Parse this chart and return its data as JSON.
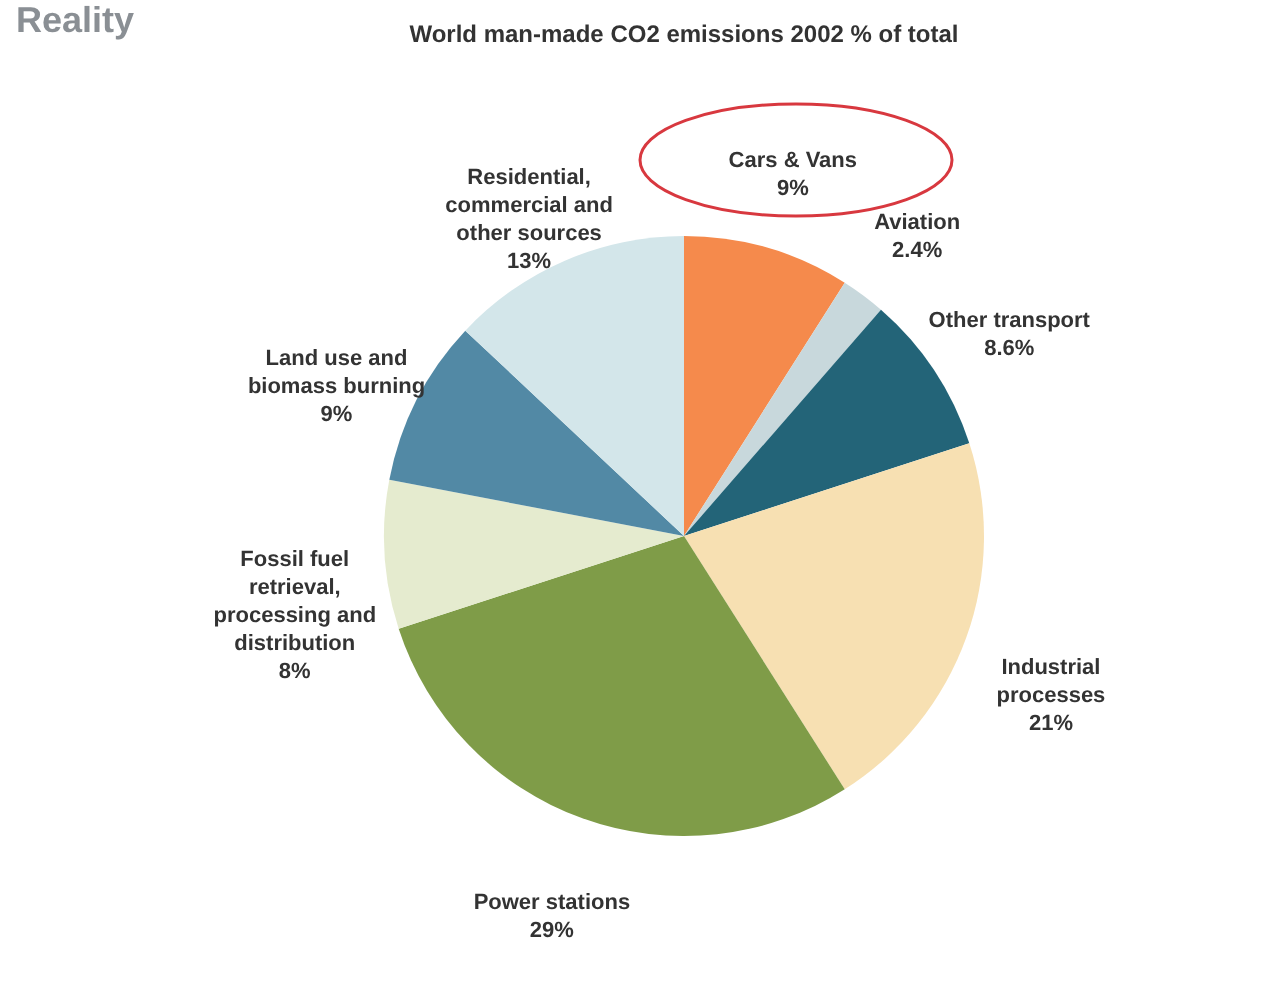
{
  "chart_data": {
    "type": "pie",
    "title": "World man-made CO2 emissions 2002 % of total",
    "annotations": [
      "Reality"
    ],
    "categories": [
      "Cars & Vans",
      "Aviation",
      "Other transport",
      "Industrial processes",
      "Power stations",
      "Fossil fuel retrieval, processing and distribution",
      "Land use and biomass burning",
      "Residential, commercial and other sources"
    ],
    "values": [
      9,
      2.4,
      8.6,
      21,
      29,
      8,
      9,
      13
    ],
    "value_labels": [
      "9%",
      "2.4%",
      "8.6%",
      "21%",
      "29%",
      "8%",
      "9%",
      "13%"
    ],
    "colors": [
      "#f58a4c",
      "#c8d8dc",
      "#236478",
      "#f7e0b2",
      "#7f9c48",
      "#e5ebcf",
      "#5289a5",
      "#d3e6ea"
    ],
    "legend": false
  }
}
